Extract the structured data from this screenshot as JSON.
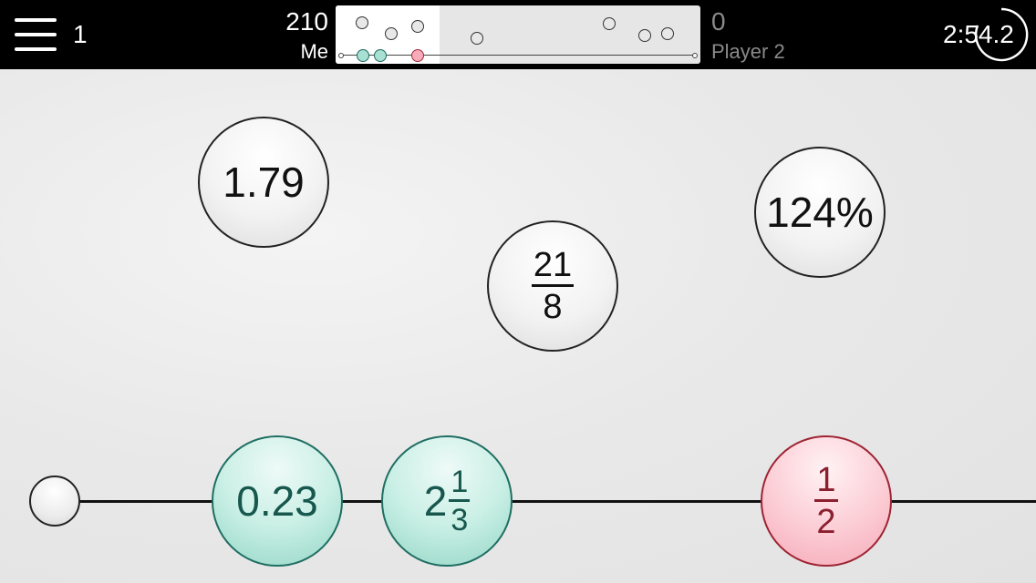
{
  "header": {
    "level": "1",
    "player1": {
      "score": "210",
      "name": "Me"
    },
    "player2": {
      "score": "0",
      "name": "Player 2"
    },
    "timer": "2:54.2"
  },
  "colors": {
    "placed_teal": "#93d6c6",
    "wrong_pink": "#f5a9b7",
    "topbar": "#000000"
  },
  "floating_bubbles": [
    {
      "label": "1.79"
    },
    {
      "numerator": "21",
      "denominator": "8"
    },
    {
      "label": "124%"
    }
  ],
  "placed_bubbles": [
    {
      "label": "0.23",
      "state": "correct"
    },
    {
      "whole": "2",
      "numerator": "1",
      "denominator": "3",
      "state": "correct"
    },
    {
      "numerator": "1",
      "denominator": "2",
      "state": "wrong"
    }
  ]
}
